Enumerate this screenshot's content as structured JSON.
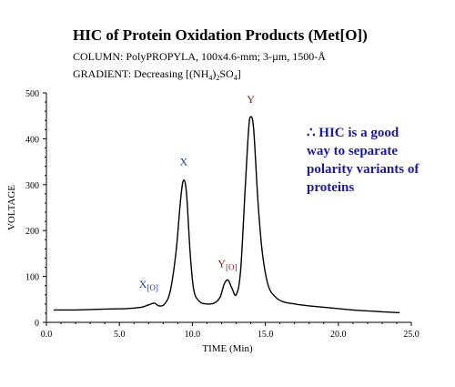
{
  "chart_data": {
    "type": "line",
    "title": "HIC of Protein Oxidation Products (Met[O])",
    "subtitle_column": "COLUMN:  PolyPROPYLA, 100x4.6-mm; 3-µm, 1500-Å",
    "subtitle_gradient_prefix": "GRADIENT:  Decreasing [(NH",
    "subtitle_gradient_sub1": "4",
    "subtitle_gradient_mid": ")",
    "subtitle_gradient_sub2": "2",
    "subtitle_gradient_suffix": "SO",
    "subtitle_gradient_sub3": "4",
    "subtitle_gradient_end": "]",
    "xlabel": "TIME (Min)",
    "ylabel": "VOLTAGE",
    "xlim": [
      0,
      25
    ],
    "ylim": [
      0,
      500
    ],
    "x_ticks": [
      "0.0",
      "5.0",
      "10.0",
      "15.0",
      "20.0",
      "25.0"
    ],
    "y_ticks": [
      "0",
      "100",
      "200",
      "300",
      "400",
      "500"
    ],
    "series": [
      {
        "color": "#000000",
        "x": [
          0.5,
          2,
          4,
          5.5,
          6.5,
          7.0,
          7.4,
          7.7,
          8.1,
          8.5,
          8.9,
          9.2,
          9.4,
          9.6,
          9.85,
          10.1,
          10.5,
          11.0,
          11.5,
          11.9,
          12.2,
          12.45,
          12.7,
          13.0,
          13.3,
          13.6,
          13.85,
          14.0,
          14.2,
          14.5,
          14.8,
          15.2,
          15.7,
          16.2,
          17,
          18,
          19,
          20,
          21,
          22,
          23,
          24.2
        ],
        "y": [
          27,
          27,
          29,
          30,
          33,
          38,
          42,
          36,
          40,
          70,
          160,
          270,
          310,
          280,
          150,
          70,
          45,
          40,
          42,
          55,
          85,
          92,
          75,
          60,
          110,
          280,
          420,
          448,
          420,
          260,
          150,
          80,
          55,
          45,
          40,
          36,
          33,
          30,
          27,
          25,
          23,
          21
        ]
      }
    ],
    "annotations": [
      {
        "label": "X",
        "sub": "",
        "x": 9.4,
        "y": 342,
        "color": "#1f3a93"
      },
      {
        "label": "X",
        "sub": "[O]",
        "x": 7.0,
        "y": 75,
        "color": "#1f3a93"
      },
      {
        "label": "Y",
        "sub": "",
        "x": 14.0,
        "y": 478,
        "color": "#8b1a1a"
      },
      {
        "label": "Y",
        "sub": "[O]",
        "x": 12.4,
        "y": 120,
        "color": "#8b1a1a"
      }
    ],
    "note_symbol": "∴",
    "note_lines": [
      "HIC is a good",
      "way to separate",
      "polarity variants of",
      "proteins"
    ],
    "note_color": "#1a1aa6"
  }
}
